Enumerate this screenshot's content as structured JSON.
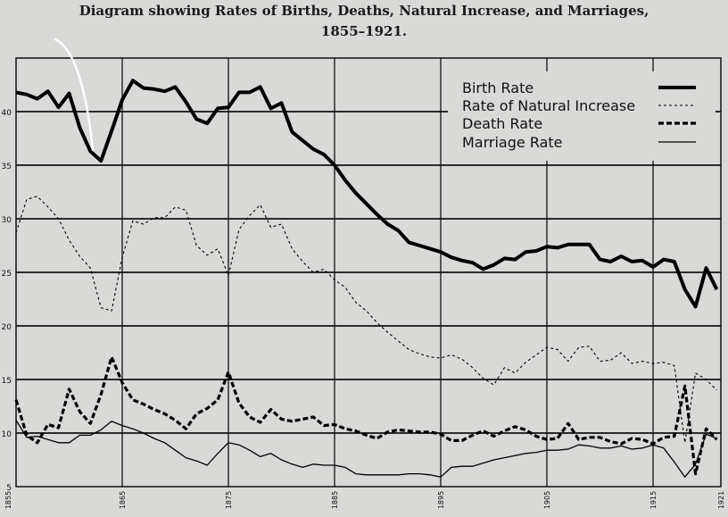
{
  "chart_data": {
    "type": "line",
    "title": "Diagram showing Rates of Births, Deaths, Natural Increase, and Marriages,",
    "subtitle": "1855–1921.",
    "xlim": [
      1855,
      1921
    ],
    "ylim": [
      5,
      45
    ],
    "x_ticks": [
      1855,
      1865,
      1875,
      1885,
      1895,
      1905,
      1915,
      1921
    ],
    "y_ticks": [
      5,
      10,
      15,
      20,
      25,
      30,
      35,
      40
    ],
    "grid": true,
    "legend_position": "top-right",
    "series": [
      {
        "name": "Birth Rate",
        "style": "thick-solid",
        "color": "#000000",
        "x": [
          1855,
          1856,
          1857,
          1858,
          1859,
          1860,
          1861,
          1862,
          1863,
          1864,
          1865,
          1866,
          1867,
          1868,
          1869,
          1870,
          1871,
          1872,
          1873,
          1874,
          1875,
          1876,
          1877,
          1878,
          1879,
          1880,
          1881,
          1882,
          1883,
          1884,
          1885,
          1886,
          1887,
          1888,
          1889,
          1890,
          1891,
          1892,
          1893,
          1894,
          1895,
          1896,
          1897,
          1898,
          1899,
          1900,
          1901,
          1902,
          1903,
          1904,
          1905,
          1906,
          1907,
          1908,
          1909,
          1910,
          1911,
          1912,
          1913,
          1914,
          1915,
          1916,
          1917,
          1918,
          1919,
          1920,
          1921
        ],
        "values": [
          41.8,
          41.6,
          41.2,
          41.9,
          40.4,
          41.7,
          38.5,
          36.3,
          35.4,
          38.2,
          41.1,
          42.9,
          42.2,
          42.1,
          41.9,
          42.3,
          40.9,
          39.3,
          38.9,
          40.3,
          40.4,
          41.8,
          41.8,
          42.3,
          40.3,
          40.8,
          38.1,
          37.3,
          36.5,
          36.0,
          35.0,
          33.6,
          32.4,
          31.4,
          30.4,
          29.5,
          28.9,
          27.8,
          27.5,
          27.2,
          26.9,
          26.4,
          26.1,
          25.9,
          25.3,
          25.7,
          26.3,
          26.2,
          26.9,
          27.0,
          27.4,
          27.3,
          27.6,
          27.6,
          27.6,
          26.2,
          26.0,
          26.5,
          26.0,
          26.1,
          25.5,
          26.2,
          26.0,
          23.4,
          21.8,
          25.4,
          23.4
        ]
      },
      {
        "name": "Rate of Natural Increase",
        "style": "thin-dotted",
        "color": "#000000",
        "x": [
          1855,
          1856,
          1857,
          1858,
          1859,
          1860,
          1861,
          1862,
          1863,
          1864,
          1865,
          1866,
          1867,
          1868,
          1869,
          1870,
          1871,
          1872,
          1873,
          1874,
          1875,
          1876,
          1877,
          1878,
          1879,
          1880,
          1881,
          1882,
          1883,
          1884,
          1885,
          1886,
          1887,
          1888,
          1889,
          1890,
          1891,
          1892,
          1893,
          1894,
          1895,
          1896,
          1897,
          1898,
          1899,
          1900,
          1901,
          1902,
          1903,
          1904,
          1905,
          1906,
          1907,
          1908,
          1909,
          1910,
          1911,
          1912,
          1913,
          1914,
          1915,
          1916,
          1917,
          1918,
          1919,
          1920,
          1921
        ],
        "values": [
          28.7,
          31.8,
          32.1,
          31.1,
          30.0,
          28.0,
          26.5,
          25.4,
          21.7,
          21.4,
          26.4,
          29.8,
          29.5,
          30.1,
          30.1,
          31.1,
          30.8,
          27.5,
          26.6,
          27.2,
          24.7,
          29.0,
          30.3,
          31.3,
          29.2,
          29.5,
          27.2,
          26.0,
          25.0,
          25.3,
          24.3,
          23.6,
          22.2,
          21.4,
          20.3,
          19.4,
          18.6,
          17.8,
          17.4,
          17.1,
          17.0,
          17.3,
          16.9,
          16.1,
          15.1,
          14.5,
          16.1,
          15.6,
          16.6,
          17.3,
          18.0,
          17.8,
          16.7,
          18.0,
          18.1,
          16.7,
          16.8,
          17.5,
          16.5,
          16.7,
          16.5,
          16.6,
          16.3,
          9.1,
          15.6,
          15.0,
          14.0
        ]
      },
      {
        "name": "Death Rate",
        "style": "thick-dashed",
        "color": "#000000",
        "x": [
          1855,
          1856,
          1857,
          1858,
          1859,
          1860,
          1861,
          1862,
          1863,
          1864,
          1865,
          1866,
          1867,
          1868,
          1869,
          1870,
          1871,
          1872,
          1873,
          1874,
          1875,
          1876,
          1877,
          1878,
          1879,
          1880,
          1881,
          1882,
          1883,
          1884,
          1885,
          1886,
          1887,
          1888,
          1889,
          1890,
          1891,
          1892,
          1893,
          1894,
          1895,
          1896,
          1897,
          1898,
          1899,
          1900,
          1901,
          1902,
          1903,
          1904,
          1905,
          1906,
          1907,
          1908,
          1909,
          1910,
          1911,
          1912,
          1913,
          1914,
          1915,
          1916,
          1917,
          1918,
          1919,
          1920,
          1921
        ],
        "values": [
          13.1,
          9.8,
          9.1,
          10.8,
          10.5,
          14.1,
          12.0,
          10.9,
          13.6,
          17.1,
          14.7,
          13.1,
          12.7,
          12.2,
          11.8,
          11.2,
          10.4,
          11.8,
          12.3,
          13.1,
          15.7,
          12.8,
          11.5,
          11.0,
          12.2,
          11.3,
          11.1,
          11.3,
          11.5,
          10.7,
          10.8,
          10.4,
          10.2,
          9.8,
          9.5,
          10.1,
          10.3,
          10.2,
          10.1,
          10.1,
          9.9,
          9.3,
          9.3,
          9.8,
          10.2,
          9.7,
          10.2,
          10.6,
          10.3,
          9.7,
          9.4,
          9.5,
          10.9,
          9.4,
          9.6,
          9.6,
          9.2,
          9.0,
          9.5,
          9.4,
          9.0,
          9.6,
          9.7,
          14.4,
          6.2,
          10.4,
          9.4
        ]
      },
      {
        "name": "Marriage Rate",
        "style": "thin-solid",
        "color": "#000000",
        "x": [
          1855,
          1856,
          1857,
          1858,
          1859,
          1860,
          1861,
          1862,
          1863,
          1864,
          1865,
          1866,
          1867,
          1868,
          1869,
          1870,
          1871,
          1872,
          1873,
          1874,
          1875,
          1876,
          1877,
          1878,
          1879,
          1880,
          1881,
          1882,
          1883,
          1884,
          1885,
          1886,
          1887,
          1888,
          1889,
          1890,
          1891,
          1892,
          1893,
          1894,
          1895,
          1896,
          1897,
          1898,
          1899,
          1900,
          1901,
          1902,
          1903,
          1904,
          1905,
          1906,
          1907,
          1908,
          1909,
          1910,
          1911,
          1912,
          1913,
          1914,
          1915,
          1916,
          1917,
          1918,
          1919,
          1920,
          1921
        ],
        "values": [
          11.2,
          9.6,
          9.7,
          9.4,
          9.1,
          9.1,
          9.8,
          9.8,
          10.3,
          11.1,
          10.7,
          10.4,
          10.0,
          9.5,
          9.1,
          8.4,
          7.7,
          7.4,
          7.0,
          8.1,
          9.1,
          8.9,
          8.4,
          7.8,
          8.1,
          7.5,
          7.1,
          6.8,
          7.1,
          7.0,
          7.0,
          6.8,
          6.2,
          6.1,
          6.1,
          6.1,
          6.1,
          6.2,
          6.2,
          6.1,
          5.9,
          6.8,
          6.9,
          6.9,
          7.2,
          7.5,
          7.7,
          7.9,
          8.1,
          8.2,
          8.4,
          8.4,
          8.5,
          8.9,
          8.8,
          8.6,
          8.6,
          8.8,
          8.5,
          8.6,
          8.9,
          8.6,
          7.3,
          5.9,
          7.1,
          9.9,
          9.5
        ]
      }
    ]
  }
}
